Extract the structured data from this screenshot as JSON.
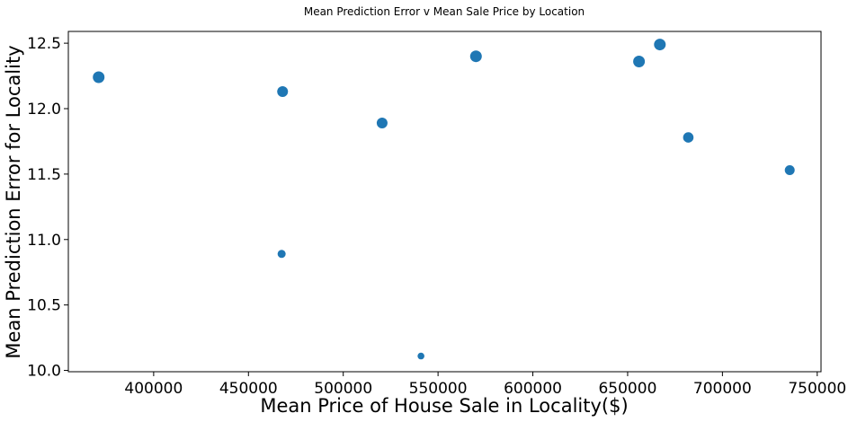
{
  "chart_data": {
    "type": "scatter",
    "title": "Mean Prediction Error v Mean Sale Price by Location",
    "xlabel": "Mean Price of House Sale in Locality($)",
    "ylabel": "Mean Prediction Error for Locality",
    "xlim": [
      355000,
      752000
    ],
    "ylim": [
      9.99,
      12.59
    ],
    "xticks": [
      "400000",
      "450000",
      "500000",
      "550000",
      "600000",
      "650000",
      "700000",
      "750000"
    ],
    "yticks": [
      "10.0",
      "10.5",
      "11.0",
      "11.5",
      "12.0",
      "12.5"
    ],
    "grid": false,
    "marker_color": "#1f77b4",
    "points": [
      {
        "x": 371000,
        "y": 12.24,
        "size": 6.5
      },
      {
        "x": 468000,
        "y": 12.13,
        "size": 6
      },
      {
        "x": 467500,
        "y": 10.89,
        "size": 4.5
      },
      {
        "x": 520500,
        "y": 11.89,
        "size": 6
      },
      {
        "x": 541000,
        "y": 10.11,
        "size": 3.8
      },
      {
        "x": 570000,
        "y": 12.4,
        "size": 6.5
      },
      {
        "x": 656000,
        "y": 12.36,
        "size": 6.5
      },
      {
        "x": 667000,
        "y": 12.49,
        "size": 6.5
      },
      {
        "x": 682000,
        "y": 11.78,
        "size": 5.8
      },
      {
        "x": 735500,
        "y": 11.53,
        "size": 5.5
      }
    ]
  }
}
